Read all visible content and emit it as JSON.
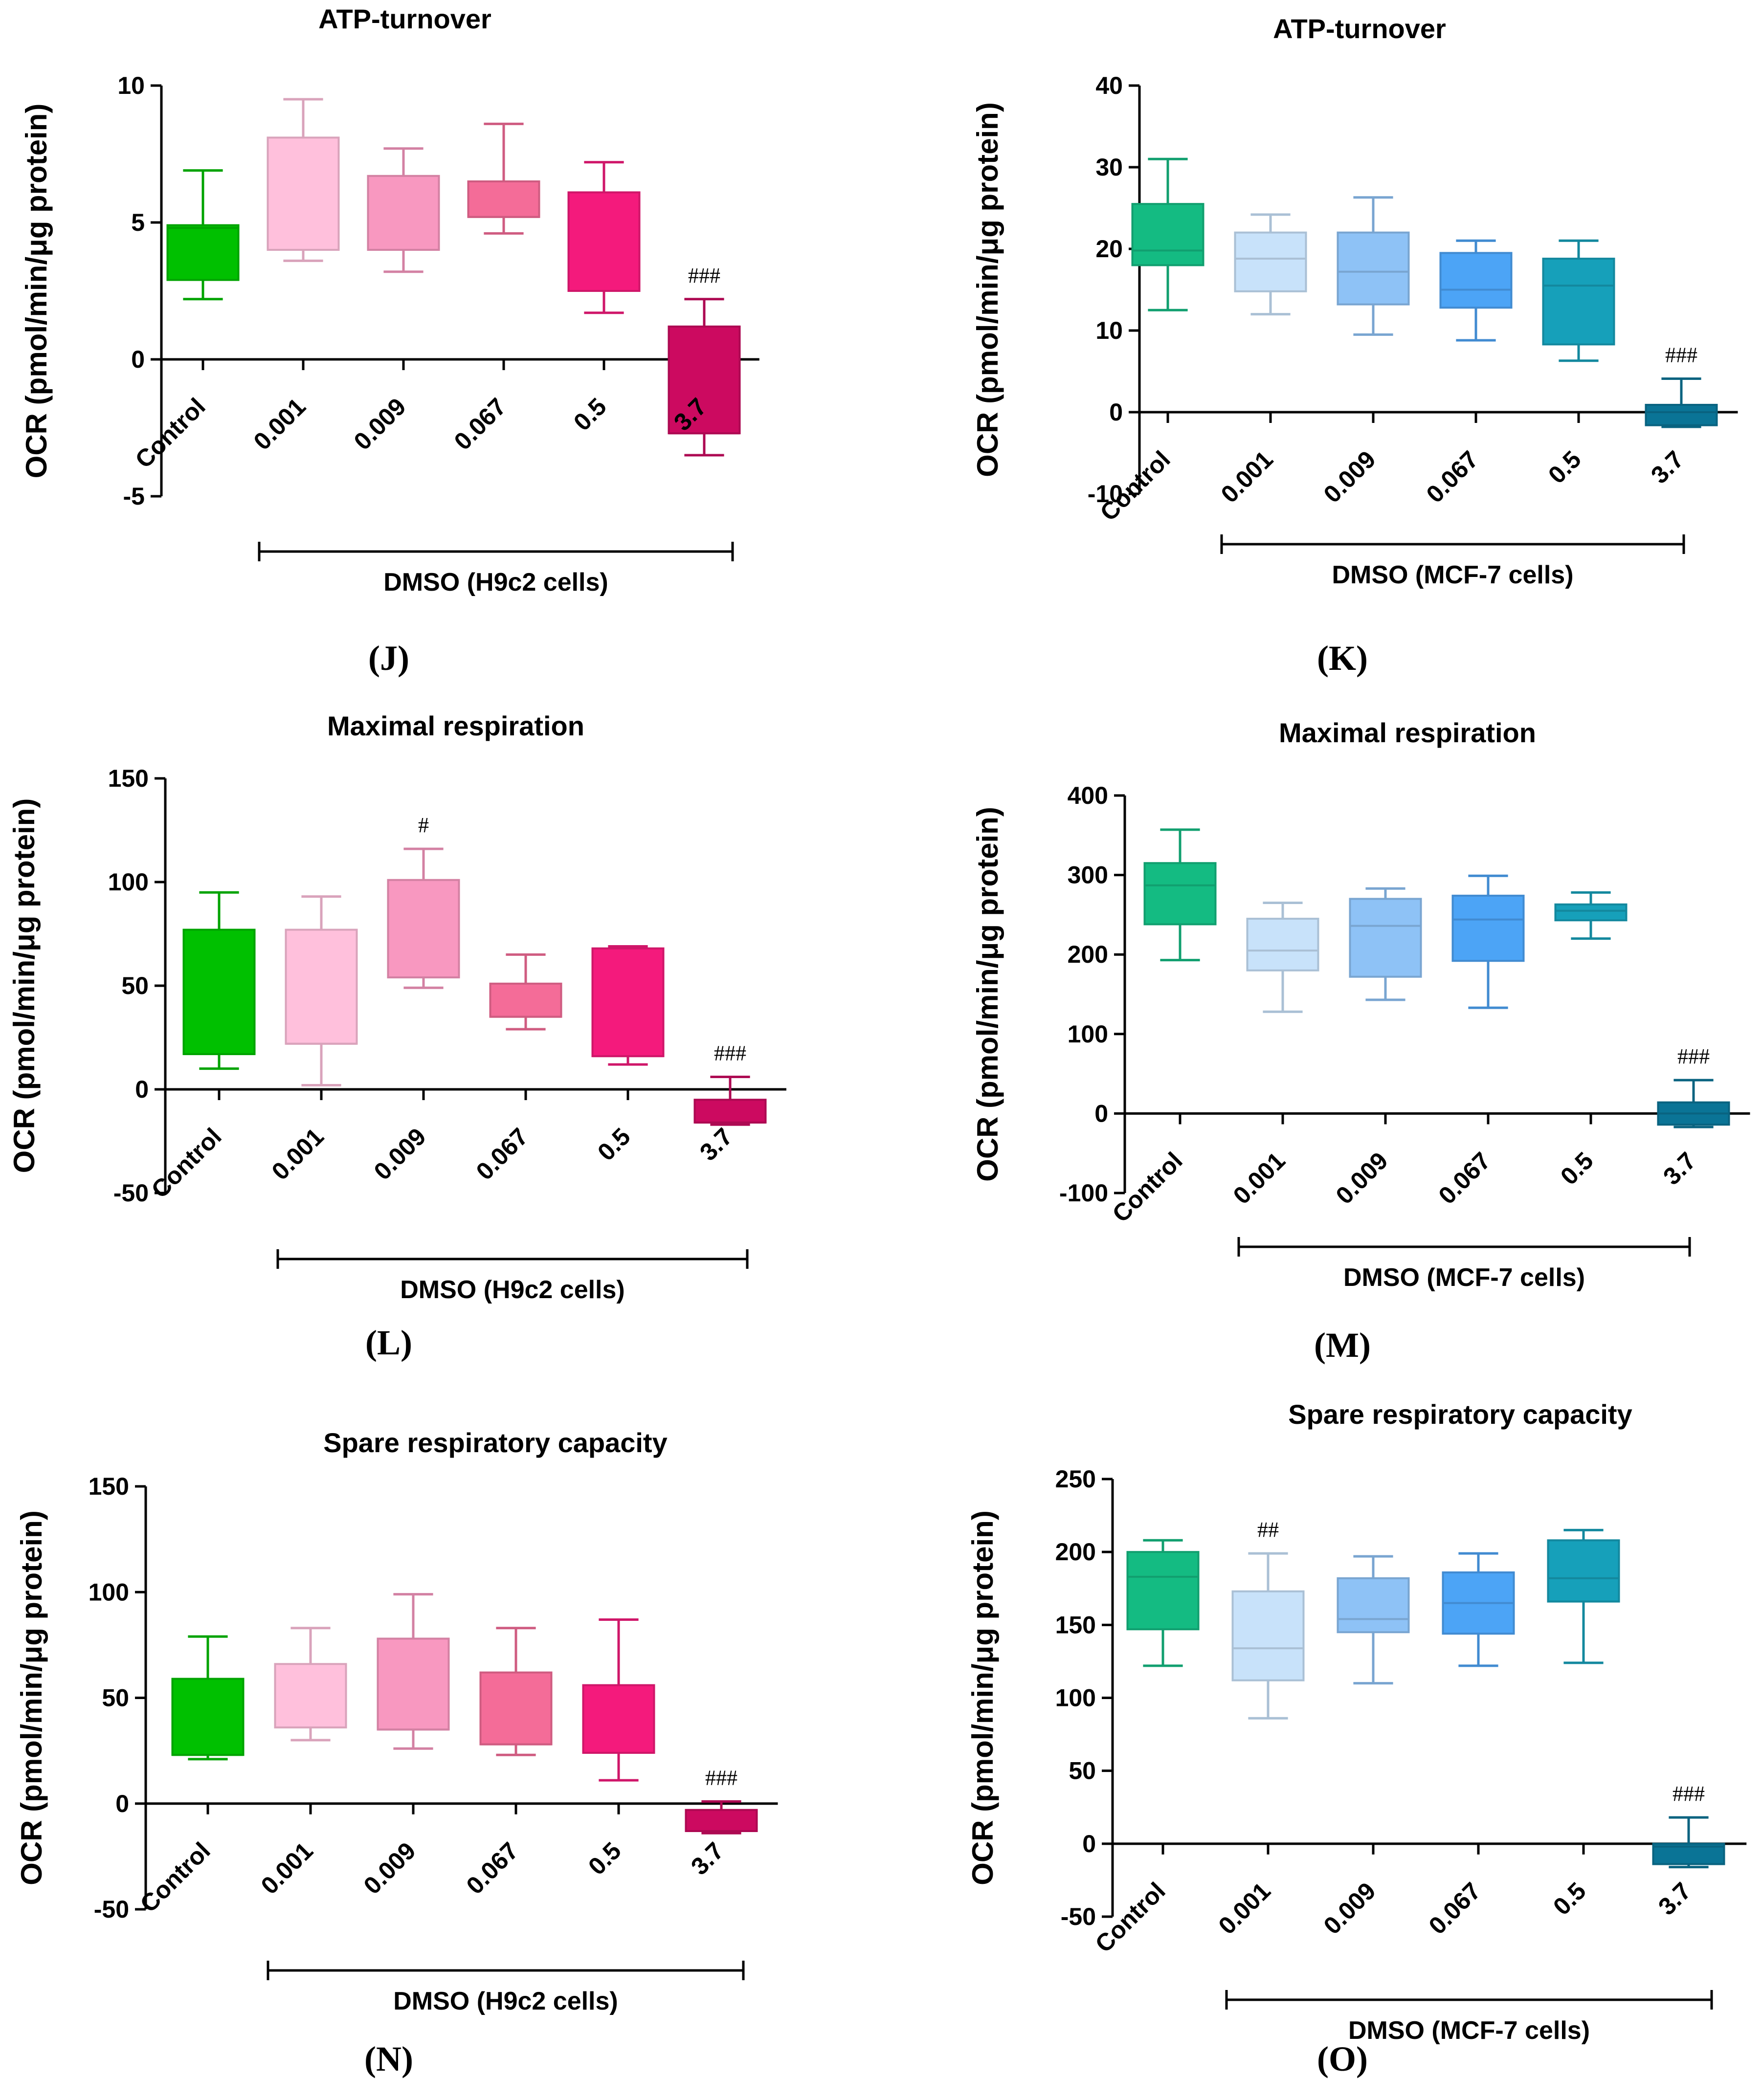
{
  "chart_data": [
    {
      "panel": "(J)",
      "type": "box",
      "title": "ATP-turnover",
      "ylabel": "OCR (pmol/min/μg protein)",
      "ylim": [
        -5,
        10
      ],
      "yticks": [
        -5,
        0,
        5,
        10
      ],
      "categories": [
        "Control",
        "0.001",
        "0.009",
        "0.067",
        "0.5",
        "3.7"
      ],
      "group_label": "DMSO (H9c2 cells)",
      "colors": [
        "#00c000",
        "#ffc0dc",
        "#f898c0",
        "#f46c98",
        "#f41a7c",
        "#cc0a60"
      ],
      "boxes": [
        {
          "min": 2.2,
          "q1": 2.9,
          "median": 4.8,
          "q3": 4.9,
          "max": 6.9
        },
        {
          "min": 3.6,
          "q1": 4.0,
          "median": 4.0,
          "q3": 8.1,
          "max": 9.5
        },
        {
          "min": 3.2,
          "q1": 4.0,
          "median": 4.0,
          "q3": 6.7,
          "max": 7.7
        },
        {
          "min": 4.6,
          "q1": 5.2,
          "median": 5.2,
          "q3": 6.5,
          "max": 8.6
        },
        {
          "min": 1.7,
          "q1": 2.5,
          "median": 2.5,
          "q3": 6.1,
          "max": 7.2
        },
        {
          "min": -3.5,
          "q1": -2.7,
          "median": -2.7,
          "q3": 1.2,
          "max": 2.2
        }
      ],
      "annotations": [
        {
          "category": "3.7",
          "text": "###"
        }
      ]
    },
    {
      "panel": "(K)",
      "type": "box",
      "title": "ATP-turnover",
      "ylabel": "OCR (pmol/min/μg protein)",
      "ylim": [
        -10,
        40
      ],
      "yticks": [
        -10,
        0,
        10,
        20,
        30,
        40
      ],
      "categories": [
        "Control",
        "0.001",
        "0.009",
        "0.067",
        "0.5",
        "3.7"
      ],
      "group_label": "DMSO (MCF-7 cells)",
      "colors": [
        "#14bb82",
        "#c8e2fa",
        "#8ec2f6",
        "#4ca4f6",
        "#16a0ba",
        "#0a7496"
      ],
      "boxes": [
        {
          "min": 12.5,
          "q1": 18.0,
          "median": 19.8,
          "q3": 25.5,
          "max": 31.0
        },
        {
          "min": 12.0,
          "q1": 14.8,
          "median": 18.8,
          "q3": 22.0,
          "max": 24.2
        },
        {
          "min": 9.5,
          "q1": 13.2,
          "median": 17.2,
          "q3": 22.0,
          "max": 26.3
        },
        {
          "min": 8.8,
          "q1": 12.8,
          "median": 15.0,
          "q3": 19.5,
          "max": 21.0
        },
        {
          "min": 6.3,
          "q1": 8.3,
          "median": 15.5,
          "q3": 18.8,
          "max": 21.0
        },
        {
          "min": -1.8,
          "q1": -1.6,
          "median": 0.0,
          "q3": 0.9,
          "max": 4.1
        }
      ],
      "annotations": [
        {
          "category": "3.7",
          "text": "###"
        }
      ]
    },
    {
      "panel": "(L)",
      "type": "box",
      "title": "Maximal respiration",
      "ylabel": "OCR (pmol/min/μg protein)",
      "ylim": [
        -50,
        150
      ],
      "yticks": [
        -50,
        0,
        50,
        100,
        150
      ],
      "categories": [
        "Control",
        "0.001",
        "0.009",
        "0.067",
        "0.5",
        "3.7"
      ],
      "group_label": "DMSO (H9c2 cells)",
      "colors": [
        "#00c000",
        "#ffc0dc",
        "#f898c0",
        "#f46c98",
        "#f41a7c",
        "#cc0a60"
      ],
      "boxes": [
        {
          "min": 10,
          "q1": 17,
          "median": 17,
          "q3": 77,
          "max": 95
        },
        {
          "min": 2,
          "q1": 22,
          "median": 22,
          "q3": 77,
          "max": 93
        },
        {
          "min": 49,
          "q1": 54,
          "median": 54,
          "q3": 101,
          "max": 116
        },
        {
          "min": 29,
          "q1": 35,
          "median": 35,
          "q3": 51,
          "max": 65
        },
        {
          "min": 12,
          "q1": 16,
          "median": 16,
          "q3": 68,
          "max": 69
        },
        {
          "min": -17,
          "q1": -16,
          "median": -16,
          "q3": -5,
          "max": 6
        }
      ],
      "annotations": [
        {
          "category": "0.009",
          "text": "#"
        },
        {
          "category": "3.7",
          "text": "###"
        }
      ]
    },
    {
      "panel": "(M)",
      "type": "box",
      "title": "Maximal respiration",
      "ylabel": "OCR (pmol/min/μg protein)",
      "ylim": [
        -100,
        400
      ],
      "yticks": [
        -100,
        0,
        100,
        200,
        300,
        400
      ],
      "categories": [
        "Control",
        "0.001",
        "0.009",
        "0.067",
        "0.5",
        "3.7"
      ],
      "group_label": "DMSO (MCF-7 cells)",
      "colors": [
        "#14bb82",
        "#c8e2fa",
        "#8ec2f6",
        "#4ca4f6",
        "#16a0ba",
        "#0a7496"
      ],
      "boxes": [
        {
          "min": 193,
          "q1": 238,
          "median": 287,
          "q3": 315,
          "max": 357
        },
        {
          "min": 128,
          "q1": 180,
          "median": 205,
          "q3": 245,
          "max": 265
        },
        {
          "min": 143,
          "q1": 172,
          "median": 236,
          "q3": 270,
          "max": 283
        },
        {
          "min": 133,
          "q1": 192,
          "median": 244,
          "q3": 274,
          "max": 299
        },
        {
          "min": 220,
          "q1": 243,
          "median": 255,
          "q3": 263,
          "max": 278
        },
        {
          "min": -17,
          "q1": -14,
          "median": 0,
          "q3": 14,
          "max": 42
        }
      ],
      "annotations": [
        {
          "category": "3.7",
          "text": "###"
        }
      ]
    },
    {
      "panel": "(N)",
      "type": "box",
      "title": "Spare respiratory capacity",
      "ylabel": "OCR (pmol/min/μg protein)",
      "ylim": [
        -50,
        150
      ],
      "yticks": [
        -50,
        0,
        50,
        100,
        150
      ],
      "categories": [
        "Control",
        "0.001",
        "0.009",
        "0.067",
        "0.5",
        "3.7"
      ],
      "group_label": "DMSO (H9c2 cells)",
      "colors": [
        "#00c000",
        "#ffc0dc",
        "#f898c0",
        "#f46c98",
        "#f41a7c",
        "#cc0a60"
      ],
      "boxes": [
        {
          "min": 21,
          "q1": 23,
          "median": 23,
          "q3": 59,
          "max": 79
        },
        {
          "min": 30,
          "q1": 36,
          "median": 36,
          "q3": 66,
          "max": 83
        },
        {
          "min": 26,
          "q1": 35,
          "median": 35,
          "q3": 78,
          "max": 99
        },
        {
          "min": 23,
          "q1": 28,
          "median": 28,
          "q3": 62,
          "max": 83
        },
        {
          "min": 11,
          "q1": 24,
          "median": 24,
          "q3": 56,
          "max": 87
        },
        {
          "min": -14,
          "q1": -13,
          "median": -13,
          "q3": -3,
          "max": 1
        }
      ],
      "annotations": [
        {
          "category": "3.7",
          "text": "###"
        }
      ]
    },
    {
      "panel": "(O)",
      "type": "box",
      "title": "Spare respiratory capacity",
      "ylabel": "OCR (pmol/min/μg protein)",
      "ylim": [
        -50,
        250
      ],
      "yticks": [
        -50,
        0,
        50,
        100,
        150,
        200,
        250
      ],
      "categories": [
        "Control",
        "0.001",
        "0.009",
        "0.067",
        "0.5",
        "3.7"
      ],
      "group_label": "DMSO (MCF-7 cells)",
      "colors": [
        "#14bb82",
        "#c8e2fa",
        "#8ec2f6",
        "#4ca4f6",
        "#16a0ba",
        "#0a7496"
      ],
      "boxes": [
        {
          "min": 122,
          "q1": 147,
          "median": 183,
          "q3": 200,
          "max": 208
        },
        {
          "min": 86,
          "q1": 112,
          "median": 134,
          "q3": 173,
          "max": 199
        },
        {
          "min": 110,
          "q1": 145,
          "median": 154,
          "q3": 182,
          "max": 197
        },
        {
          "min": 122,
          "q1": 144,
          "median": 165,
          "q3": 186,
          "max": 199
        },
        {
          "min": 124,
          "q1": 166,
          "median": 182,
          "q3": 208,
          "max": 215
        },
        {
          "min": -16,
          "q1": -14,
          "median": -2,
          "q3": 0,
          "max": 18
        }
      ],
      "annotations": [
        {
          "category": "0.001",
          "text": "##"
        },
        {
          "category": "3.7",
          "text": "###"
        }
      ]
    }
  ]
}
